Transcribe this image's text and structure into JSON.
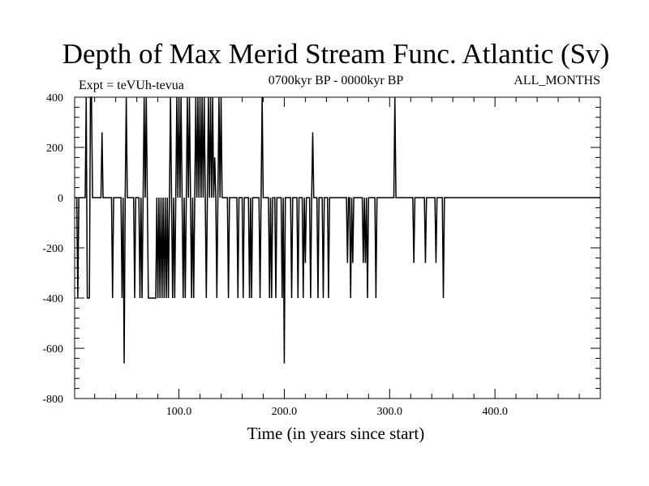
{
  "chart_data": {
    "type": "line",
    "title": "Depth of Max Merid Stream Func. Atlantic (Sv)",
    "subtitle_left": "Expt = teVUh-tevua",
    "subtitle_center": "0700kyr BP - 0000kyr BP",
    "subtitle_right": "ALL_MONTHS",
    "xlabel": "Time (in years since start)",
    "ylabel": "",
    "xlim": [
      1,
      500
    ],
    "ylim": [
      -800,
      400
    ],
    "xticks": [
      {
        "value": 100,
        "label": "100.0"
      },
      {
        "value": 200,
        "label": "200.0"
      },
      {
        "value": 300,
        "label": "300.0"
      },
      {
        "value": 400,
        "label": "400.0"
      }
    ],
    "yticks": [
      {
        "value": 400,
        "label": "400"
      },
      {
        "value": 200,
        "label": "200"
      },
      {
        "value": 0,
        "label": "0"
      },
      {
        "value": -200,
        "label": "-200"
      },
      {
        "value": -400,
        "label": "-400"
      },
      {
        "value": -600,
        "label": "-600"
      },
      {
        "value": -800,
        "label": "-800"
      }
    ],
    "grid": false,
    "series": [
      {
        "color": "#000000",
        "points": [
          [
            1,
            0
          ],
          [
            3,
            0
          ],
          [
            4,
            -400
          ],
          [
            5,
            0
          ],
          [
            11,
            0
          ],
          [
            12,
            400
          ],
          [
            13,
            -400
          ],
          [
            15,
            -400
          ],
          [
            16,
            400
          ],
          [
            17,
            400
          ],
          [
            18,
            0
          ],
          [
            26,
            0
          ],
          [
            27,
            260
          ],
          [
            28,
            0
          ],
          [
            36,
            0
          ],
          [
            37,
            -400
          ],
          [
            38,
            0
          ],
          [
            45,
            0
          ],
          [
            46,
            -400
          ],
          [
            47,
            0
          ],
          [
            48,
            -660
          ],
          [
            49,
            0
          ],
          [
            50,
            400
          ],
          [
            51,
            0
          ],
          [
            57,
            0
          ],
          [
            58,
            -400
          ],
          [
            59,
            0
          ],
          [
            62,
            0
          ],
          [
            63,
            -400
          ],
          [
            64,
            0
          ],
          [
            65,
            -400
          ],
          [
            66,
            0
          ],
          [
            67,
            400
          ],
          [
            68,
            0
          ],
          [
            69,
            400
          ],
          [
            70,
            0
          ],
          [
            71,
            -400
          ],
          [
            78,
            -400
          ],
          [
            79,
            0
          ],
          [
            80,
            -400
          ],
          [
            81,
            0
          ],
          [
            82,
            -400
          ],
          [
            83,
            0
          ],
          [
            84,
            -400
          ],
          [
            85,
            0
          ],
          [
            86,
            -400
          ],
          [
            87,
            0
          ],
          [
            88,
            -400
          ],
          [
            89,
            0
          ],
          [
            90,
            -400
          ],
          [
            91,
            0
          ],
          [
            92,
            400
          ],
          [
            93,
            0
          ],
          [
            94,
            -400
          ],
          [
            95,
            0
          ],
          [
            96,
            -400
          ],
          [
            97,
            0
          ],
          [
            98,
            400
          ],
          [
            99,
            0
          ],
          [
            100,
            400
          ],
          [
            101,
            0
          ],
          [
            102,
            400
          ],
          [
            103,
            0
          ],
          [
            104,
            -400
          ],
          [
            105,
            0
          ],
          [
            106,
            -400
          ],
          [
            107,
            0
          ],
          [
            108,
            400
          ],
          [
            109,
            0
          ],
          [
            110,
            400
          ],
          [
            111,
            0
          ],
          [
            112,
            -400
          ],
          [
            113,
            0
          ],
          [
            114,
            -400
          ],
          [
            115,
            0
          ],
          [
            116,
            400
          ],
          [
            117,
            0
          ],
          [
            118,
            400
          ],
          [
            119,
            0
          ],
          [
            120,
            400
          ],
          [
            121,
            0
          ],
          [
            122,
            400
          ],
          [
            123,
            0
          ],
          [
            124,
            400
          ],
          [
            125,
            0
          ],
          [
            126,
            -400
          ],
          [
            127,
            0
          ],
          [
            128,
            400
          ],
          [
            129,
            0
          ],
          [
            130,
            400
          ],
          [
            131,
            0
          ],
          [
            132,
            400
          ],
          [
            133,
            0
          ],
          [
            134,
            160
          ],
          [
            135,
            0
          ],
          [
            136,
            -400
          ],
          [
            137,
            0
          ],
          [
            138,
            400
          ],
          [
            139,
            0
          ],
          [
            140,
            400
          ],
          [
            141,
            0
          ],
          [
            146,
            0
          ],
          [
            147,
            -400
          ],
          [
            148,
            0
          ],
          [
            155,
            0
          ],
          [
            156,
            -400
          ],
          [
            157,
            0
          ],
          [
            160,
            0
          ],
          [
            161,
            -400
          ],
          [
            162,
            0
          ],
          [
            166,
            0
          ],
          [
            167,
            -400
          ],
          [
            168,
            0
          ],
          [
            169,
            -400
          ],
          [
            170,
            0
          ],
          [
            176,
            0
          ],
          [
            177,
            -400
          ],
          [
            178,
            0
          ],
          [
            179,
            400
          ],
          [
            180,
            0
          ],
          [
            185,
            0
          ],
          [
            186,
            -400
          ],
          [
            187,
            0
          ],
          [
            188,
            -400
          ],
          [
            189,
            0
          ],
          [
            191,
            0
          ],
          [
            192,
            -400
          ],
          [
            193,
            0
          ],
          [
            197,
            0
          ],
          [
            198,
            -400
          ],
          [
            199,
            0
          ],
          [
            200,
            -660
          ],
          [
            201,
            0
          ],
          [
            206,
            0
          ],
          [
            207,
            -400
          ],
          [
            208,
            0
          ],
          [
            212,
            0
          ],
          [
            213,
            -400
          ],
          [
            214,
            0
          ],
          [
            217,
            0
          ],
          [
            218,
            -400
          ],
          [
            219,
            0
          ],
          [
            220,
            -260
          ],
          [
            221,
            0
          ],
          [
            224,
            0
          ],
          [
            225,
            -400
          ],
          [
            226,
            0
          ],
          [
            227,
            260
          ],
          [
            228,
            0
          ],
          [
            231,
            0
          ],
          [
            232,
            -400
          ],
          [
            233,
            0
          ],
          [
            236,
            0
          ],
          [
            237,
            -400
          ],
          [
            238,
            0
          ],
          [
            241,
            0
          ],
          [
            242,
            -400
          ],
          [
            243,
            0
          ],
          [
            259,
            0
          ],
          [
            260,
            -260
          ],
          [
            261,
            0
          ],
          [
            262,
            0
          ],
          [
            263,
            -400
          ],
          [
            264,
            0
          ],
          [
            265,
            -260
          ],
          [
            266,
            0
          ],
          [
            274,
            0
          ],
          [
            275,
            -260
          ],
          [
            276,
            0
          ],
          [
            277,
            -260
          ],
          [
            278,
            0
          ],
          [
            279,
            -400
          ],
          [
            280,
            0
          ],
          [
            286,
            0
          ],
          [
            287,
            -400
          ],
          [
            288,
            0
          ],
          [
            304,
            0
          ],
          [
            305,
            400
          ],
          [
            306,
            0
          ],
          [
            322,
            0
          ],
          [
            323,
            -260
          ],
          [
            324,
            0
          ],
          [
            333,
            0
          ],
          [
            334,
            -260
          ],
          [
            335,
            0
          ],
          [
            343,
            0
          ],
          [
            344,
            -260
          ],
          [
            345,
            0
          ],
          [
            350,
            0
          ],
          [
            351,
            -400
          ],
          [
            352,
            0
          ],
          [
            500,
            0
          ]
        ]
      }
    ]
  }
}
